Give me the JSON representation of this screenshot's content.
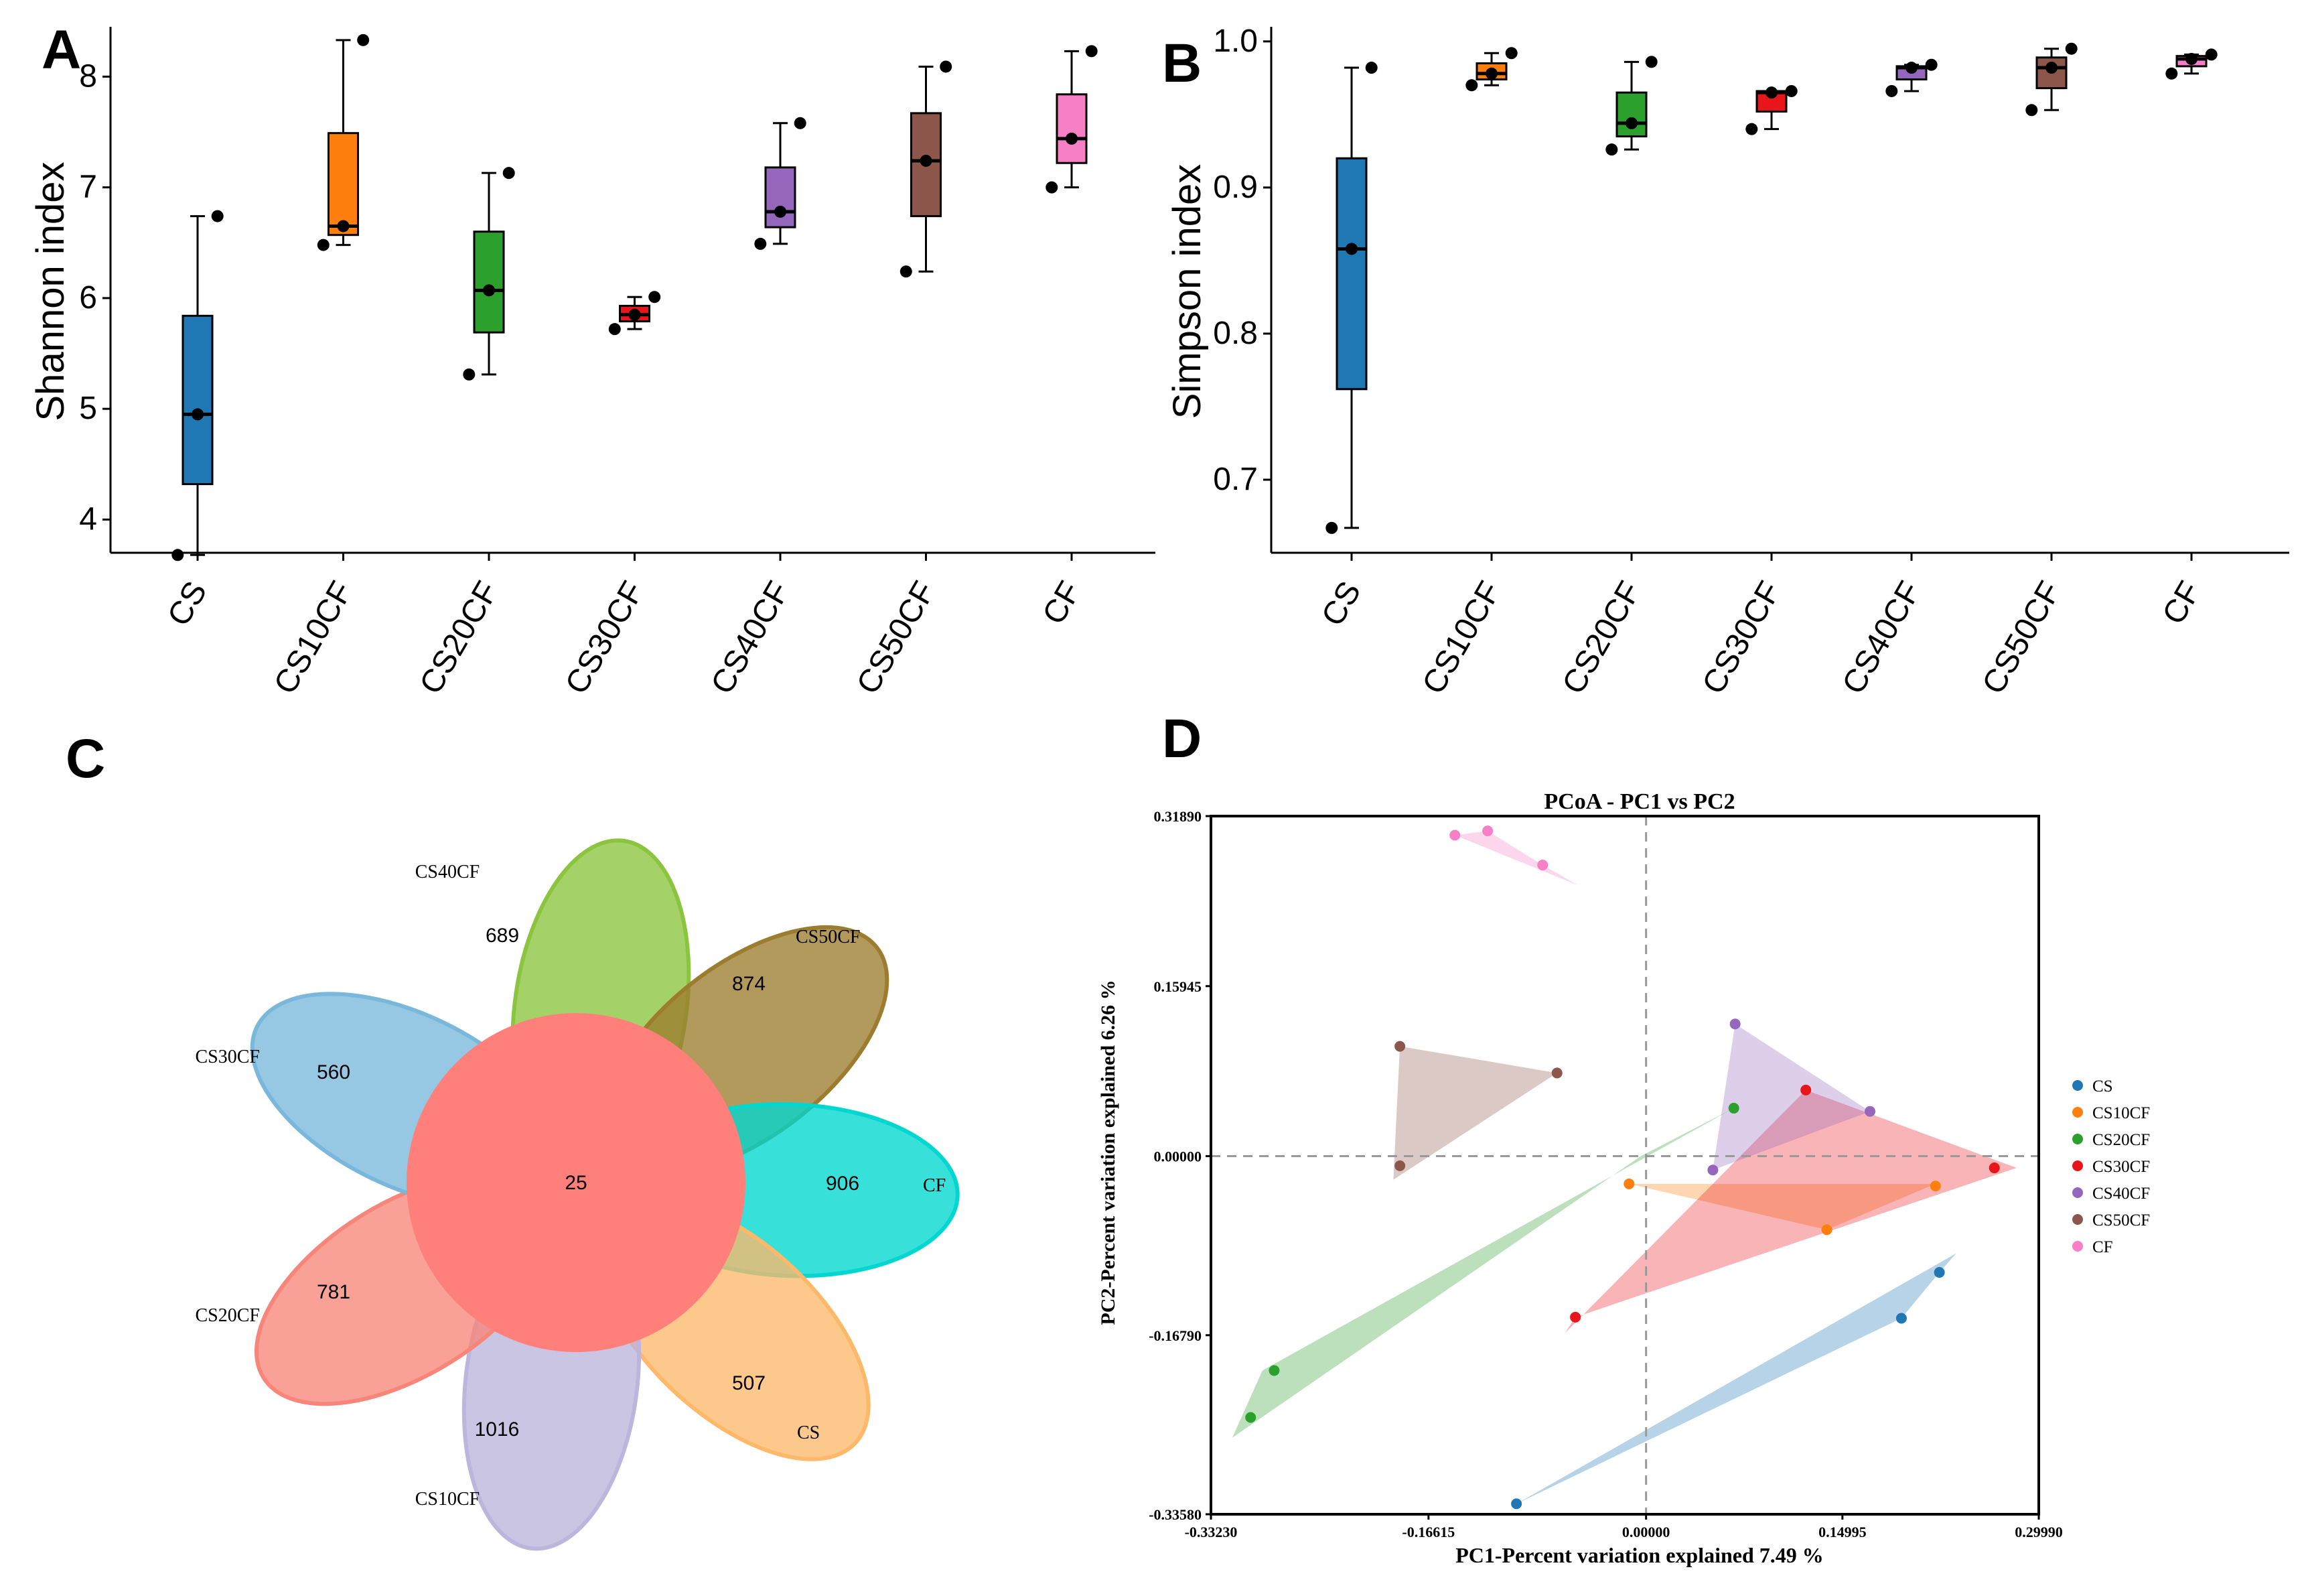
{
  "colors": {
    "CS": "#1f77b4",
    "CS10CF": "#ff7f0e",
    "CS20CF": "#2ca02c",
    "CS30CF": "#e8161b",
    "CS40CF": "#9467bd",
    "CS50CF": "#8c564b",
    "CF": "#f77fc6"
  },
  "chart_data": [
    {
      "panel": "A",
      "type": "box",
      "xlabel": "",
      "ylabel": "Shannon index",
      "ylim": [
        3.7,
        8.45
      ],
      "yticks": [
        "4",
        "5",
        "6",
        "7",
        "8"
      ],
      "categories": [
        "CS",
        "CS10CF",
        "CS20CF",
        "CS30CF",
        "CS40CF",
        "CS50CF",
        "CF"
      ],
      "boxes": [
        {
          "group": "CS",
          "min": 3.68,
          "q1": 4.32,
          "median": 4.95,
          "q3": 5.84,
          "max": 6.74,
          "points": [
            3.68,
            4.95,
            6.74
          ]
        },
        {
          "group": "CS10CF",
          "min": 6.48,
          "q1": 6.57,
          "median": 6.65,
          "q3": 7.49,
          "max": 8.33,
          "points": [
            6.48,
            6.65,
            8.33
          ]
        },
        {
          "group": "CS20CF",
          "min": 5.31,
          "q1": 5.69,
          "median": 6.07,
          "q3": 6.6,
          "max": 7.13,
          "points": [
            5.31,
            6.07,
            7.13
          ]
        },
        {
          "group": "CS30CF",
          "min": 5.72,
          "q1": 5.79,
          "median": 5.85,
          "q3": 5.93,
          "max": 6.01,
          "points": [
            5.72,
            5.85,
            6.01
          ]
        },
        {
          "group": "CS40CF",
          "min": 6.49,
          "q1": 6.64,
          "median": 6.78,
          "q3": 7.18,
          "max": 7.58,
          "points": [
            6.49,
            6.78,
            7.58
          ]
        },
        {
          "group": "CS50CF",
          "min": 6.24,
          "q1": 6.74,
          "median": 7.24,
          "q3": 7.67,
          "max": 8.09,
          "points": [
            6.24,
            7.24,
            8.09
          ]
        },
        {
          "group": "CF",
          "min": 7.0,
          "q1": 7.22,
          "median": 7.44,
          "q3": 7.84,
          "max": 8.23,
          "points": [
            7.0,
            7.44,
            8.23
          ]
        }
      ]
    },
    {
      "panel": "B",
      "type": "box",
      "xlabel": "",
      "ylabel": "Simpson index",
      "ylim": [
        0.65,
        1.01
      ],
      "yticks": [
        "0.7",
        "0.8",
        "0.9",
        "1.0"
      ],
      "categories": [
        "CS",
        "CS10CF",
        "CS20CF",
        "CS30CF",
        "CS40CF",
        "CS50CF",
        "CF"
      ],
      "boxes": [
        {
          "group": "CS",
          "min": 0.667,
          "q1": 0.762,
          "median": 0.858,
          "q3": 0.92,
          "max": 0.982,
          "points": [
            0.667,
            0.858,
            0.982
          ]
        },
        {
          "group": "CS10CF",
          "min": 0.97,
          "q1": 0.974,
          "median": 0.978,
          "q3": 0.985,
          "max": 0.992,
          "points": [
            0.97,
            0.978,
            0.992
          ]
        },
        {
          "group": "CS20CF",
          "min": 0.926,
          "q1": 0.935,
          "median": 0.944,
          "q3": 0.965,
          "max": 0.986,
          "points": [
            0.926,
            0.944,
            0.986
          ]
        },
        {
          "group": "CS30CF",
          "min": 0.94,
          "q1": 0.952,
          "median": 0.965,
          "q3": 0.966,
          "max": 0.966,
          "points": [
            0.94,
            0.965,
            0.966
          ]
        },
        {
          "group": "CS40CF",
          "min": 0.966,
          "q1": 0.974,
          "median": 0.982,
          "q3": 0.983,
          "max": 0.984,
          "points": [
            0.966,
            0.982,
            0.984
          ]
        },
        {
          "group": "CS50CF",
          "min": 0.953,
          "q1": 0.968,
          "median": 0.982,
          "q3": 0.989,
          "max": 0.995,
          "points": [
            0.953,
            0.982,
            0.995
          ]
        },
        {
          "group": "CF",
          "min": 0.978,
          "q1": 0.983,
          "median": 0.988,
          "q3": 0.99,
          "max": 0.991,
          "points": [
            0.978,
            0.988,
            0.991
          ]
        }
      ]
    },
    {
      "panel": "C",
      "type": "venn",
      "core_value": "25",
      "petals": [
        {
          "group": "CS40CF",
          "label": "CS40CF",
          "value": "689",
          "color": "#8bc53f"
        },
        {
          "group": "CS50CF",
          "label": "CS50CF",
          "value": "874",
          "color": "#9c7c2e"
        },
        {
          "group": "CF",
          "label": "CF",
          "value": "906",
          "color": "#00d7d0"
        },
        {
          "group": "CS",
          "label": "CS",
          "value": "507",
          "color": "#fdb86a"
        },
        {
          "group": "CS10CF",
          "label": "CS10CF",
          "value": "1016",
          "color": "#bcb5dc"
        },
        {
          "group": "CS20CF",
          "label": "CS20CF",
          "value": "781",
          "color": "#f7857a"
        },
        {
          "group": "CS30CF",
          "label": "CS30CF",
          "value": "560",
          "color": "#7ab8db"
        }
      ],
      "core_color": "#ff7f7a"
    },
    {
      "panel": "D",
      "type": "scatter",
      "title": "PCoA - PC1 vs PC2",
      "xlabel": "PC1-Percent variation explained 7.49 %",
      "ylabel": "PC2-Percent variation explained 6.26 %",
      "xlim": [
        -0.3323,
        0.2999
      ],
      "ylim": [
        -0.3358,
        0.3189
      ],
      "xticks": [
        {
          "value": -0.3323,
          "label": "-0.33230"
        },
        {
          "value": -0.16615,
          "label": "-0.16615"
        },
        {
          "value": 0.0,
          "label": "0.00000"
        },
        {
          "value": 0.14995,
          "label": "0.14995"
        },
        {
          "value": 0.2999,
          "label": "0.29990"
        }
      ],
      "yticks": [
        {
          "value": -0.3358,
          "label": "-0.33580"
        },
        {
          "value": -0.1679,
          "label": "-0.16790"
        },
        {
          "value": 0.0,
          "label": "0.00000"
        },
        {
          "value": 0.15945,
          "label": "0.15945"
        },
        {
          "value": 0.3189,
          "label": "0.31890"
        }
      ],
      "series": [
        {
          "name": "CS",
          "points": [
            [
              -0.099,
              -0.326
            ],
            [
              0.195,
              -0.152
            ],
            [
              0.224,
              -0.109
            ]
          ],
          "hull": [
            [
              -0.099,
              -0.326
            ],
            [
              0.195,
              -0.152
            ],
            [
              0.224,
              -0.109
            ],
            [
              0.237,
              -0.091
            ]
          ]
        },
        {
          "name": "CS10CF",
          "points": [
            [
              -0.013,
              -0.026
            ],
            [
              0.138,
              -0.069
            ],
            [
              0.221,
              -0.028
            ]
          ],
          "hull": [
            [
              -0.013,
              -0.026
            ],
            [
              0.221,
              -0.026
            ],
            [
              0.138,
              -0.069
            ]
          ]
        },
        {
          "name": "CS20CF",
          "points": [
            [
              -0.302,
              -0.245
            ],
            [
              -0.284,
              -0.201
            ],
            [
              0.067,
              0.045
            ]
          ],
          "hull": [
            [
              -0.316,
              -0.264
            ],
            [
              -0.293,
              -0.201
            ],
            [
              0.067,
              0.045
            ],
            [
              -0.004,
              0.0
            ]
          ]
        },
        {
          "name": "CS30CF",
          "points": [
            [
              -0.054,
              -0.151
            ],
            [
              0.122,
              0.062
            ],
            [
              0.266,
              -0.011
            ]
          ],
          "hull": [
            [
              -0.054,
              -0.151
            ],
            [
              -0.062,
              -0.166
            ],
            [
              0.122,
              0.062
            ],
            [
              0.283,
              -0.011
            ]
          ]
        },
        {
          "name": "CS40CF",
          "points": [
            [
              0.051,
              -0.013
            ],
            [
              0.068,
              0.124
            ],
            [
              0.171,
              0.042
            ]
          ],
          "hull": [
            [
              0.051,
              -0.013
            ],
            [
              0.068,
              0.124
            ],
            [
              0.171,
              0.042
            ]
          ]
        },
        {
          "name": "CS50CF",
          "points": [
            [
              -0.188,
              0.103
            ],
            [
              -0.188,
              -0.009
            ],
            [
              -0.068,
              0.078
            ]
          ],
          "hull": [
            [
              -0.188,
              0.103
            ],
            [
              -0.068,
              0.078
            ],
            [
              -0.193,
              -0.022
            ]
          ]
        },
        {
          "name": "CF",
          "points": [
            [
              -0.146,
              0.301
            ],
            [
              -0.121,
              0.305
            ],
            [
              -0.079,
              0.273
            ]
          ],
          "hull": [
            [
              -0.146,
              0.301
            ],
            [
              -0.121,
              0.305
            ],
            [
              -0.079,
              0.273
            ],
            [
              -0.052,
              0.254
            ]
          ]
        }
      ],
      "legend": [
        "CS",
        "CS10CF",
        "CS20CF",
        "CS30CF",
        "CS40CF",
        "CS50CF",
        "CF"
      ]
    }
  ],
  "panel_labels": {
    "A": "A",
    "B": "B",
    "C": "C",
    "D": "D"
  }
}
